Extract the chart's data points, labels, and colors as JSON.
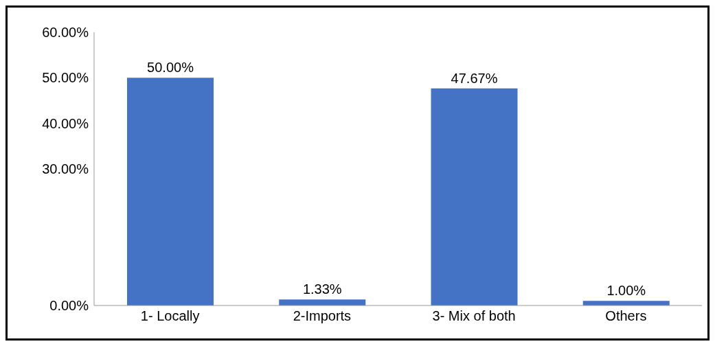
{
  "chart_data": {
    "type": "bar",
    "categories": [
      "1- Locally",
      "2-Imports",
      "3- Mix of both",
      "Others"
    ],
    "values": [
      50.0,
      1.33,
      47.67,
      1.0
    ],
    "color": "#4472c4",
    "value_labels": [
      "50.00%",
      "1.33%",
      "47.67%",
      "1.00%"
    ],
    "ylim": [
      0,
      60
    ],
    "yticks": [
      {
        "value": 0,
        "label": "0.00%"
      },
      {
        "value": 30,
        "label": "30.00%"
      },
      {
        "value": 40,
        "label": "40.00%"
      },
      {
        "value": 50,
        "label": "50.00%"
      },
      {
        "value": 60,
        "label": "60.00%"
      }
    ],
    "grid": false
  }
}
